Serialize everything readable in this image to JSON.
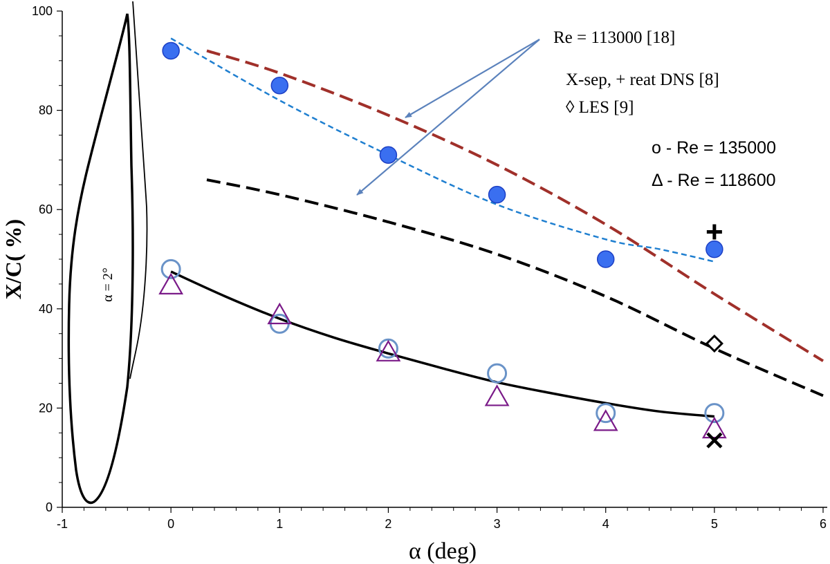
{
  "chart_data": {
    "type": "scatter",
    "xlabel": "α (deg)",
    "ylabel": "X/C( %)",
    "xlim": [
      -1,
      6
    ],
    "ylim": [
      0,
      100
    ],
    "xticks": [
      "-1",
      "0",
      "1",
      "2",
      "3",
      "4",
      "5",
      "6"
    ],
    "yticks": [
      "0",
      "20",
      "40",
      "60",
      "80",
      "100"
    ],
    "grid": false,
    "series": [
      {
        "name": "X-sep DNS [8]",
        "kind": "markers",
        "marker": "filled-circle",
        "x": [
          0,
          1,
          2,
          3,
          4,
          5
        ],
        "y": [
          92,
          85,
          71,
          63,
          50,
          52
        ]
      },
      {
        "name": "reat DNS [8]",
        "kind": "markers",
        "marker": "plus",
        "x": [
          5
        ],
        "y": [
          55.5
        ]
      },
      {
        "name": "LES [9]",
        "kind": "markers",
        "marker": "diamond",
        "x": [
          5
        ],
        "y": [
          33
        ]
      },
      {
        "name": "Re = 135000",
        "kind": "markers",
        "marker": "open-circle",
        "x": [
          0,
          1,
          2,
          3,
          4,
          5
        ],
        "y": [
          48,
          37,
          32,
          27,
          19,
          19
        ]
      },
      {
        "name": "Re = 118600",
        "kind": "markers",
        "marker": "open-triangle",
        "x": [
          0,
          1,
          2,
          3,
          4,
          5
        ],
        "y": [
          45,
          39,
          31.5,
          22.5,
          17.5,
          16
        ]
      },
      {
        "kind": "markers",
        "marker": "x-cross",
        "x": [
          5
        ],
        "y": [
          13.5
        ]
      },
      {
        "kind": "dashed-line",
        "role": "fit to filled circles",
        "x": [
          0,
          1,
          2,
          3,
          4,
          4.5,
          5
        ],
        "y": [
          94.5,
          82,
          71,
          61,
          54,
          52,
          49.5
        ]
      },
      {
        "name": "Re = 113000 [18]",
        "kind": "dashed-line",
        "role": "upper",
        "x": [
          0.33,
          1,
          2,
          3,
          4,
          5,
          6
        ],
        "y": [
          92,
          87.5,
          79,
          69,
          57,
          43,
          29.5
        ]
      },
      {
        "name": "Re = 113000 [18]",
        "kind": "dashed-line",
        "role": "lower",
        "x": [
          0.33,
          1,
          2,
          3,
          4,
          5,
          6
        ],
        "y": [
          66,
          63,
          57.5,
          51,
          42.5,
          32,
          22.5
        ]
      },
      {
        "kind": "solid-line",
        "role": "fit to open markers",
        "x": [
          0,
          0.5,
          1,
          1.5,
          2,
          2.5,
          3,
          3.5,
          4,
          4.5,
          5
        ],
        "y": [
          47.5,
          42.5,
          38,
          34.2,
          31,
          28,
          25.2,
          23,
          21,
          19.3,
          18.3
        ]
      }
    ],
    "annotations": {
      "re113000": "Re = 113000  [18]",
      "xsep": "X-sep, + reat  DNS  [8]",
      "les": "◊ LES      [9]",
      "re135000": "o - Re = 135000",
      "re118600": "Δ - Re = 118600",
      "airfoil": "α = 2°"
    },
    "colors": {
      "filled_circle": "#3a6ff0",
      "filled_circle_edge": "#1c3fc4",
      "open_circle": "#6a93c8",
      "triangle": "#7a1a88",
      "dash_blue": "#1f7fd0",
      "dash_red": "#a0302a",
      "dash_black": "#000000",
      "arrow": "#5b82bc",
      "axis": "#000000"
    }
  }
}
